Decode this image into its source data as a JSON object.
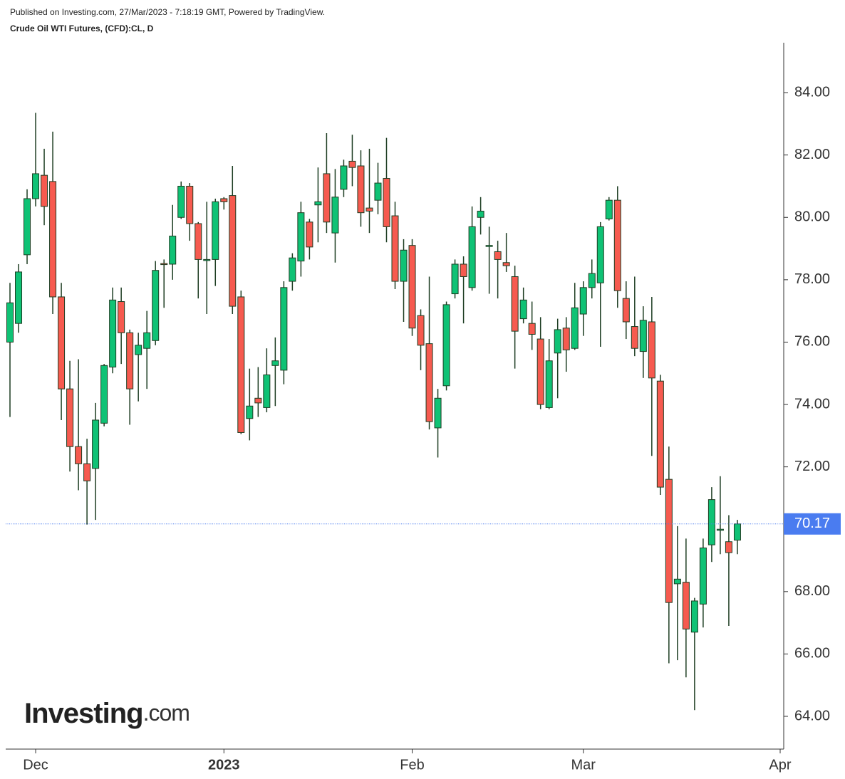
{
  "chart_data": {
    "type": "candlestick",
    "publisher": "Published on Investing.com, 27/Mar/2023 - 7:18:19 GMT, Powered by TradingView.",
    "title": "Crude Oil WTI Futures, (CFD):CL, D",
    "watermark": {
      "brand": "Investing",
      "suffix": ".com"
    },
    "open": [
      76.0,
      76.6,
      78.8,
      80.6,
      81.35,
      81.15,
      77.45,
      74.5,
      72.65,
      72.1,
      71.95,
      73.4,
      75.2,
      77.3,
      76.3,
      75.6,
      75.8,
      76.05,
      78.52,
      78.5,
      80.0,
      81.0,
      79.8,
      78.65,
      78.65,
      80.6,
      80.7,
      77.45,
      73.55,
      74.2,
      73.9,
      75.25,
      75.1,
      77.95,
      78.6,
      79.85,
      80.4,
      81.4,
      79.5,
      80.9,
      81.8,
      81.65,
      80.3,
      80.55,
      81.25,
      80.05,
      77.95,
      79.1,
      76.85,
      75.95,
      73.25,
      74.6,
      77.55,
      78.5,
      77.75,
      80.0,
      79.1,
      78.9,
      78.55,
      78.1,
      76.75,
      76.6,
      76.1,
      73.9,
      75.65,
      76.45,
      75.8,
      76.9,
      77.75,
      77.9,
      79.95,
      80.55,
      77.4,
      76.5,
      75.7,
      76.65,
      74.75,
      71.6,
      68.25,
      68.3,
      66.7,
      67.6,
      69.5,
      70.0,
      69.6,
      69.65
    ],
    "high": [
      77.9,
      78.5,
      80.9,
      83.35,
      82.2,
      82.75,
      77.9,
      75.4,
      75.45,
      72.9,
      74.05,
      75.3,
      77.75,
      77.75,
      76.4,
      76.3,
      77.0,
      78.6,
      78.65,
      80.4,
      81.15,
      81.1,
      79.85,
      80.5,
      80.6,
      80.65,
      81.65,
      77.65,
      75.15,
      75.2,
      75.8,
      76.15,
      77.95,
      78.85,
      80.5,
      79.95,
      81.6,
      82.7,
      81.55,
      81.85,
      82.65,
      82.15,
      82.2,
      81.75,
      82.55,
      80.5,
      79.3,
      79.3,
      77.05,
      78.1,
      74.5,
      77.3,
      78.65,
      78.75,
      80.35,
      80.65,
      79.7,
      79.25,
      79.5,
      78.45,
      77.75,
      77.3,
      76.8,
      76.1,
      76.75,
      76.8,
      77.9,
      77.95,
      78.65,
      79.85,
      80.65,
      81.0,
      77.95,
      78.1,
      77.15,
      77.45,
      74.95,
      72.65,
      70.1,
      69.7,
      67.8,
      69.7,
      71.35,
      71.7,
      70.45,
      70.3
    ],
    "low": [
      73.6,
      76.3,
      78.5,
      80.35,
      79.75,
      76.9,
      73.5,
      71.85,
      71.25,
      70.15,
      70.3,
      73.3,
      75.0,
      75.3,
      73.35,
      74.1,
      74.5,
      75.9,
      77.1,
      78.0,
      79.95,
      79.25,
      77.4,
      76.9,
      77.8,
      80.25,
      76.9,
      73.05,
      72.85,
      73.6,
      73.75,
      73.95,
      74.65,
      77.65,
      78.1,
      78.65,
      79.2,
      79.5,
      78.55,
      80.65,
      81.0,
      79.7,
      79.5,
      80.1,
      79.2,
      77.7,
      76.65,
      76.2,
      75.1,
      73.2,
      72.3,
      74.45,
      77.4,
      76.6,
      77.65,
      79.45,
      77.55,
      77.4,
      78.25,
      75.15,
      76.6,
      75.75,
      73.85,
      73.85,
      74.2,
      75.05,
      75.75,
      76.2,
      77.4,
      75.85,
      79.9,
      77.1,
      76.1,
      75.55,
      74.85,
      72.35,
      71.1,
      65.7,
      65.8,
      65.25,
      64.2,
      66.85,
      68.95,
      69.2,
      66.9,
      69.2
    ],
    "close": [
      77.26,
      78.25,
      80.6,
      81.4,
      80.35,
      77.45,
      74.5,
      72.65,
      72.1,
      71.55,
      73.5,
      75.25,
      77.35,
      76.3,
      74.5,
      75.9,
      76.3,
      78.3,
      78.5,
      79.4,
      81.0,
      79.8,
      78.65,
      78.65,
      80.5,
      80.5,
      77.15,
      73.1,
      73.95,
      74.05,
      74.95,
      75.4,
      77.75,
      78.7,
      80.15,
      79.05,
      80.5,
      79.85,
      80.65,
      81.65,
      81.6,
      80.15,
      80.2,
      81.1,
      79.7,
      77.95,
      78.95,
      76.45,
      75.9,
      73.45,
      74.2,
      77.2,
      78.5,
      78.1,
      79.7,
      80.2,
      79.1,
      78.65,
      78.45,
      76.35,
      77.35,
      76.25,
      74.0,
      75.4,
      76.4,
      75.75,
      77.1,
      77.75,
      78.2,
      79.7,
      80.55,
      77.65,
      76.65,
      75.8,
      76.7,
      74.85,
      71.35,
      67.65,
      68.4,
      66.8,
      67.7,
      69.4,
      70.95,
      70.0,
      69.25,
      70.17
    ],
    "last_price": {
      "value": 70.17,
      "label": "70.17"
    },
    "up_color": "#0fc275",
    "down_color": "#f65a4f",
    "wick_color": "#1d3d22",
    "price_line_color": "#4a7cf0",
    "xlim": [
      -0.5,
      90.25
    ],
    "xticks": [
      {
        "value": 3,
        "label": "Dec"
      },
      {
        "value": 25,
        "label": "2023"
      },
      {
        "value": 47,
        "label": "Feb"
      },
      {
        "value": 67,
        "label": "Mar"
      },
      {
        "value": 90,
        "label": "Apr"
      }
    ],
    "ylim": [
      62.95,
      85.6
    ],
    "yticks": [
      {
        "value": 64,
        "label": "64.00"
      },
      {
        "value": 66,
        "label": "66.00"
      },
      {
        "value": 68,
        "label": "68.00"
      },
      {
        "value": 70,
        "label": "70.00"
      },
      {
        "value": 72,
        "label": "72.00"
      },
      {
        "value": 74,
        "label": "74.00"
      },
      {
        "value": 76,
        "label": "76.00"
      },
      {
        "value": 78,
        "label": "78.00"
      },
      {
        "value": 80,
        "label": "80.00"
      },
      {
        "value": 82,
        "label": "82.00"
      },
      {
        "value": 84,
        "label": "84.00"
      }
    ],
    "grid": false
  }
}
